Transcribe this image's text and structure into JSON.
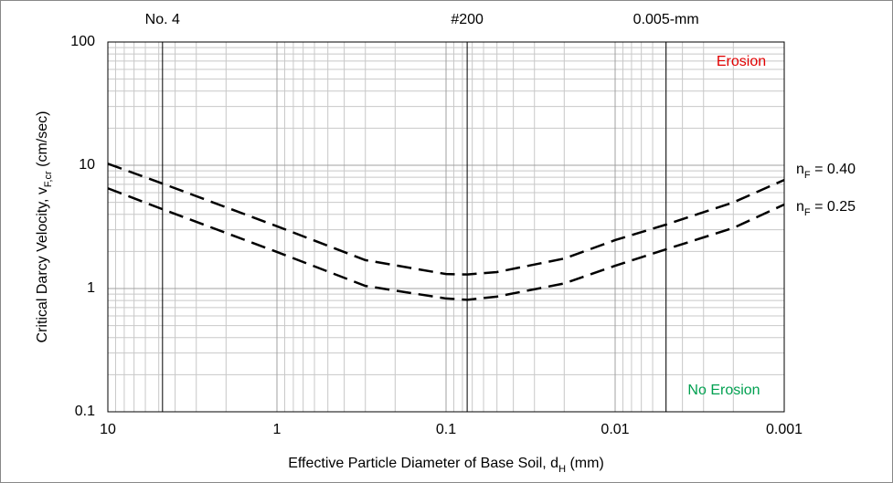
{
  "chart_data": {
    "type": "line",
    "xscale": "log",
    "yscale": "log",
    "x_reversed": true,
    "xlim": [
      10,
      0.001
    ],
    "ylim": [
      0.1,
      100
    ],
    "xticks": [
      10,
      1,
      0.1,
      0.01,
      0.001
    ],
    "yticks": [
      0.1,
      1,
      10,
      100
    ],
    "grid": true,
    "minor_grid": true,
    "x_label": [
      {
        "text": "Effective Particle Diameter of Base Soil, d"
      },
      {
        "text": "H",
        "sub": true
      },
      {
        "text": " (mm)"
      }
    ],
    "y_label": [
      {
        "text": "Critical Darcy Velocity, v"
      },
      {
        "text": "F,cr",
        "sub": true
      },
      {
        "text": " (cm/sec)"
      }
    ],
    "vlines": [
      {
        "value": 4.75,
        "label": "No. 4"
      },
      {
        "value": 0.075,
        "label": "#200"
      },
      {
        "value": 0.005,
        "label": "0.005-mm"
      }
    ],
    "annotations": [
      {
        "text": "Erosion",
        "color": "#e00000"
      },
      {
        "text": "No Erosion",
        "color": "#00a050"
      }
    ],
    "x": [
      10,
      4.75,
      1,
      0.3,
      0.1,
      0.075,
      0.05,
      0.02,
      0.01,
      0.005,
      0.002,
      0.001
    ],
    "series": [
      {
        "label": [
          {
            "text": "n"
          },
          {
            "text": "F",
            "sub": true
          },
          {
            "text": " = 0.40"
          }
        ],
        "color": "#000000",
        "values": [
          10.3,
          7.1,
          3.2,
          1.7,
          1.31,
          1.3,
          1.36,
          1.75,
          2.47,
          3.3,
          5.0,
          7.6
        ]
      },
      {
        "label": [
          {
            "text": "n"
          },
          {
            "text": "F",
            "sub": true
          },
          {
            "text": " = 0.25"
          }
        ],
        "color": "#000000",
        "values": [
          6.5,
          4.4,
          1.98,
          1.05,
          0.83,
          0.81,
          0.86,
          1.1,
          1.53,
          2.08,
          3.1,
          4.8
        ]
      }
    ]
  }
}
